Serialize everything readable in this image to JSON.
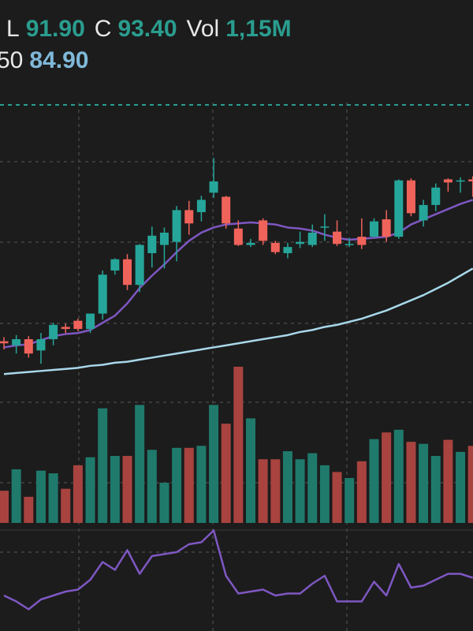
{
  "chart_data": {
    "type": "candlestick",
    "header": [
      {
        "label": "L",
        "value": "91.90"
      },
      {
        "label": "C",
        "value": "93.40"
      },
      {
        "label": "Vol",
        "value": "1,15M"
      }
    ],
    "header2": [
      {
        "label": "50",
        "value": "84.90"
      }
    ],
    "open": [
      77.8,
      77.4,
      78.0,
      76.9,
      78.0,
      79.2,
      79.8,
      79.0,
      80.5,
      84.7,
      85.8,
      83.3,
      86.4,
      87.2,
      87.5,
      90.6,
      90.4,
      92.3,
      91.9,
      88.8,
      87.2,
      89.6,
      87.4,
      86.4,
      87.3,
      87.2,
      88.9,
      88.5,
      87.2,
      88.0,
      88.0,
      89.7,
      88.0,
      93.5,
      89.6,
      91.1,
      93.6,
      93.4,
      93.6
    ],
    "high": [
      78.2,
      78.4,
      78.3,
      78.6,
      79.6,
      79.5,
      80.0,
      80.5,
      84.7,
      85.9,
      86.3,
      87.3,
      89.0,
      88.9,
      91.0,
      91.5,
      92.0,
      95.7,
      92.0,
      89.6,
      87.8,
      89.8,
      87.6,
      87.4,
      88.5,
      89.2,
      90.2,
      89.6,
      87.9,
      89.8,
      89.8,
      90.6,
      93.6,
      93.7,
      91.6,
      93.2,
      93.7,
      93.8,
      93.9
    ],
    "low": [
      77.0,
      76.6,
      76.2,
      75.6,
      77.4,
      78.6,
      78.8,
      78.6,
      79.9,
      84.3,
      82.8,
      82.6,
      85.0,
      84.9,
      85.6,
      88.2,
      89.5,
      91.8,
      88.8,
      87.1,
      87.0,
      87.2,
      86.3,
      85.9,
      86.9,
      87.0,
      87.6,
      87.1,
      87.0,
      86.8,
      87.9,
      87.5,
      87.8,
      90.0,
      89.0,
      90.5,
      92.4,
      92.3,
      91.9
    ],
    "close": [
      77.6,
      78.0,
      76.6,
      78.0,
      79.4,
      79.0,
      79.0,
      80.5,
      84.3,
      85.8,
      83.3,
      87.2,
      88.1,
      88.4,
      90.6,
      89.3,
      91.6,
      93.4,
      89.3,
      87.2,
      87.4,
      87.6,
      86.5,
      87.0,
      87.5,
      88.4,
      89.0,
      87.3,
      87.3,
      87.2,
      89.5,
      88.0,
      93.5,
      90.3,
      91.1,
      92.8,
      93.3,
      93.5,
      93.4
    ],
    "up_color": "#26a69a",
    "down_color": "#f0635b",
    "ylim": [
      74,
      101.1
    ],
    "overlays": [
      {
        "color": "#7e57c2",
        "values": [
          77.2,
          77.4,
          77.5,
          77.9,
          78.3,
          78.5,
          78.6,
          78.9,
          79.6,
          80.3,
          81.5,
          83.0,
          84.2,
          85.3,
          86.5,
          87.6,
          88.4,
          88.9,
          89.2,
          89.3,
          89.4,
          89.3,
          89.2,
          88.9,
          88.8,
          88.6,
          88.2,
          87.9,
          87.7,
          87.8,
          87.9,
          88.0,
          88.4,
          89.2,
          89.7,
          90.2,
          90.7,
          91.2,
          91.6
        ]
      },
      {
        "color": "#a8d8ea",
        "values": [
          74.6,
          74.7,
          74.8,
          74.9,
          75.0,
          75.1,
          75.2,
          75.4,
          75.5,
          75.7,
          75.8,
          76.0,
          76.2,
          76.4,
          76.6,
          76.8,
          77.0,
          77.2,
          77.4,
          77.6,
          77.8,
          78.0,
          78.2,
          78.4,
          78.7,
          78.9,
          79.2,
          79.4,
          79.7,
          80.0,
          80.4,
          80.8,
          81.3,
          81.8,
          82.3,
          82.9,
          83.5,
          84.2,
          84.9
        ]
      }
    ],
    "volume": {
      "values": [
        480000,
        800000,
        390000,
        780000,
        740000,
        510000,
        860000,
        980000,
        1710000,
        1000000,
        1000000,
        1760000,
        1090000,
        600000,
        1120000,
        1120000,
        1150000,
        1760000,
        1480000,
        2330000,
        1560000,
        950000,
        950000,
        1070000,
        950000,
        1040000,
        860000,
        760000,
        670000,
        920000,
        1250000,
        1350000,
        1390000,
        1210000,
        1180000,
        1000000,
        1240000,
        1060000,
        1150000
      ],
      "up_color": "#1f7a6c",
      "down_color": "#a8433f",
      "ylim": [
        0,
        2400000
      ]
    },
    "indicator": {
      "color": "#7e57c2",
      "values": [
        48,
        45,
        41,
        46,
        48,
        50,
        51,
        56,
        65,
        61,
        71,
        59,
        68,
        69,
        70,
        74,
        75,
        81,
        58,
        49,
        50,
        51,
        48,
        49,
        49,
        54,
        58,
        45,
        45,
        45,
        55,
        48,
        64,
        52,
        53,
        56,
        59,
        59,
        57
      ],
      "ylim": [
        40,
        82
      ]
    }
  }
}
